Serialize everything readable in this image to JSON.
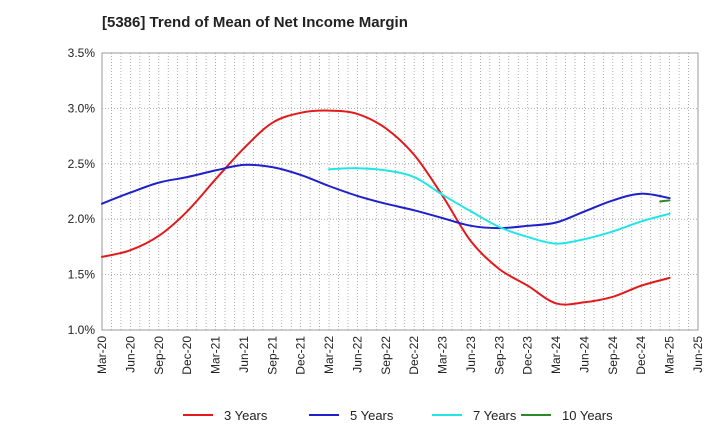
{
  "chart_data": {
    "type": "line",
    "title": "[5386]  Trend of Mean of Net Income Margin",
    "xlabel": "",
    "ylabel": "",
    "x_ticks": [
      "Mar-20",
      "Jun-20",
      "Sep-20",
      "Dec-20",
      "Mar-21",
      "Jun-21",
      "Sep-21",
      "Dec-21",
      "Mar-22",
      "Jun-22",
      "Sep-22",
      "Dec-22",
      "Mar-23",
      "Jun-23",
      "Sep-23",
      "Dec-23",
      "Mar-24",
      "Jun-24",
      "Sep-24",
      "Dec-24",
      "Mar-25",
      "Jun-25"
    ],
    "y_ticks": [
      "1.0%",
      "1.5%",
      "2.0%",
      "2.5%",
      "3.0%",
      "3.5%"
    ],
    "ylim": [
      1.0,
      3.5
    ],
    "grid": true,
    "legend_position": "bottom",
    "series": [
      {
        "name": "3 Years",
        "color": "#e31a1c",
        "x": [
          "Mar-20",
          "Jun-20",
          "Sep-20",
          "Dec-20",
          "Mar-21",
          "Jun-21",
          "Sep-21",
          "Dec-21",
          "Mar-22",
          "Jun-22",
          "Sep-22",
          "Dec-22",
          "Mar-23",
          "Jun-23",
          "Sep-23",
          "Dec-23",
          "Mar-24",
          "Jun-24",
          "Sep-24",
          "Dec-24",
          "Mar-25"
        ],
        "values": [
          1.66,
          1.72,
          1.85,
          2.07,
          2.36,
          2.64,
          2.87,
          2.96,
          2.98,
          2.95,
          2.82,
          2.58,
          2.21,
          1.8,
          1.55,
          1.4,
          1.24,
          1.25,
          1.3,
          1.4,
          1.47
        ]
      },
      {
        "name": "5 Years",
        "color": "#1f1fcc",
        "x": [
          "Mar-20",
          "Jun-20",
          "Sep-20",
          "Dec-20",
          "Mar-21",
          "Jun-21",
          "Sep-21",
          "Dec-21",
          "Mar-22",
          "Jun-22",
          "Sep-22",
          "Dec-22",
          "Mar-23",
          "Jun-23",
          "Sep-23",
          "Dec-23",
          "Mar-24",
          "Jun-24",
          "Sep-24",
          "Dec-24",
          "Mar-25"
        ],
        "values": [
          2.14,
          2.24,
          2.33,
          2.38,
          2.44,
          2.49,
          2.47,
          2.4,
          2.3,
          2.21,
          2.14,
          2.08,
          2.01,
          1.94,
          1.92,
          1.94,
          1.97,
          2.07,
          2.17,
          2.23,
          2.19
        ]
      },
      {
        "name": "7 Years",
        "color": "#22e5e5",
        "x": [
          "Mar-22",
          "Jun-22",
          "Sep-22",
          "Dec-22",
          "Mar-23",
          "Jun-23",
          "Sep-23",
          "Dec-23",
          "Mar-24",
          "Jun-24",
          "Sep-24",
          "Dec-24",
          "Mar-25"
        ],
        "values": [
          2.45,
          2.46,
          2.44,
          2.38,
          2.22,
          2.07,
          1.93,
          1.84,
          1.78,
          1.82,
          1.89,
          1.98,
          2.05
        ]
      },
      {
        "name": "10 Years",
        "color": "#2a8a2a",
        "x": [
          "Feb-25",
          "Mar-25"
        ],
        "values": [
          2.16,
          2.17
        ]
      }
    ]
  }
}
